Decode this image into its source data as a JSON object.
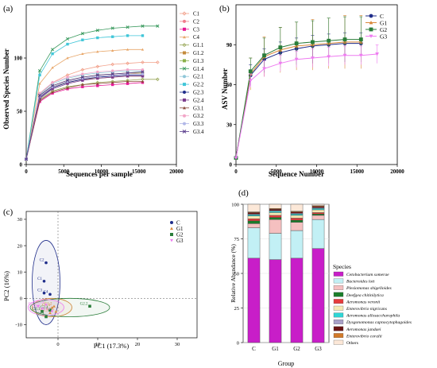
{
  "chart_data": [
    {
      "panel": "(a)",
      "type": "line",
      "xlabel": "Sequences per sample",
      "ylabel": "Observed Species Number",
      "xlim": [
        0,
        20000
      ],
      "ylim": [
        0,
        150
      ],
      "xticks": [
        0,
        5000,
        10000,
        15000,
        20000
      ],
      "yticks": [
        0,
        50,
        100
      ],
      "grid": false,
      "legend": "right",
      "x": [
        0,
        1800,
        3500,
        5500,
        7500,
        9500,
        11500,
        13500,
        15500,
        17500
      ],
      "series": [
        {
          "name": "C1",
          "color": "#f2a08a",
          "marker": "diamond",
          "values": [
            5,
            66,
            77,
            84,
            89,
            92,
            94,
            95,
            96,
            96
          ]
        },
        {
          "name": "C2",
          "color": "#f07c8c",
          "marker": "circle",
          "values": [
            5,
            63,
            73,
            78,
            81,
            83,
            84,
            85,
            86,
            null
          ]
        },
        {
          "name": "C3",
          "color": "#e61995",
          "marker": "square",
          "values": [
            5,
            59,
            67,
            71,
            73,
            74,
            75,
            76,
            77,
            null
          ]
        },
        {
          "name": "C4",
          "color": "#e8a76a",
          "marker": "triangle",
          "values": [
            5,
            76,
            91,
            100,
            104,
            106,
            107,
            108,
            108,
            null
          ]
        },
        {
          "name": "G1.1",
          "color": "#9aa85a",
          "marker": "diamond",
          "values": [
            5,
            61,
            69,
            73,
            75,
            77,
            78,
            79,
            80,
            80
          ]
        },
        {
          "name": "G1.2",
          "color": "#c48b3c",
          "marker": "square",
          "values": [
            5,
            64,
            73,
            77,
            80,
            81,
            82,
            83,
            83,
            null
          ]
        },
        {
          "name": "G1.3",
          "color": "#8bb04a",
          "marker": "square",
          "values": [
            5,
            65,
            74,
            79,
            82,
            84,
            85,
            86,
            86,
            null
          ]
        },
        {
          "name": "G1.4",
          "color": "#3a9a5e",
          "marker": "x",
          "values": [
            5,
            88,
            108,
            118,
            123,
            126,
            128,
            129,
            130,
            130
          ]
        },
        {
          "name": "G2.1",
          "color": "#8fc7d8",
          "marker": "circle",
          "values": [
            5,
            66,
            76,
            81,
            84,
            86,
            87,
            88,
            88,
            null
          ]
        },
        {
          "name": "G2.2",
          "color": "#41c6d8",
          "marker": "square",
          "values": [
            5,
            84,
            104,
            113,
            117,
            119,
            120,
            121,
            121,
            null
          ]
        },
        {
          "name": "G2.3",
          "color": "#1f2d8a",
          "marker": "circle",
          "values": [
            5,
            63,
            72,
            77,
            80,
            82,
            83,
            84,
            84,
            null
          ]
        },
        {
          "name": "G2.4",
          "color": "#7a3b8c",
          "marker": "square",
          "values": [
            5,
            62,
            71,
            76,
            79,
            81,
            82,
            83,
            83,
            null
          ]
        },
        {
          "name": "G3.1",
          "color": "#8a4a3a",
          "marker": "triangle",
          "values": [
            5,
            60,
            68,
            72,
            75,
            76,
            77,
            78,
            78,
            null
          ]
        },
        {
          "name": "G3.2",
          "color": "#f2a6c8",
          "marker": "circle",
          "values": [
            5,
            67,
            77,
            82,
            85,
            87,
            88,
            89,
            89,
            null
          ]
        },
        {
          "name": "G3.3",
          "color": "#b2b8e8",
          "marker": "circle",
          "values": [
            5,
            64,
            73,
            78,
            81,
            83,
            84,
            85,
            85,
            null
          ]
        },
        {
          "name": "G3.4",
          "color": "#5a3c8c",
          "marker": "x",
          "values": [
            5,
            65,
            74,
            79,
            82,
            84,
            85,
            86,
            87,
            null
          ]
        }
      ]
    },
    {
      "panel": "(b)",
      "type": "line",
      "xlabel": "Sequence Number",
      "ylabel": "ASV Number",
      "xlim": [
        0,
        20000
      ],
      "ylim": [
        0,
        120
      ],
      "xticks": [
        0,
        5000,
        10000,
        15000,
        20000
      ],
      "yticks": [
        0,
        30,
        60,
        90
      ],
      "grid": false,
      "legend": "top-right",
      "x": [
        0,
        1800,
        3500,
        5500,
        7500,
        9500,
        11500,
        13500,
        15500,
        17500
      ],
      "series": [
        {
          "name": "C",
          "color": "#1f2d8a",
          "marker": "circle",
          "values": [
            5,
            67,
            79,
            84,
            87,
            89,
            90,
            91,
            91,
            null
          ],
          "errors": [
            0,
            8,
            8,
            8,
            8,
            8,
            8,
            8,
            8,
            null
          ]
        },
        {
          "name": "G1",
          "color": "#d9883a",
          "marker": "triangle",
          "values": [
            5,
            68,
            81,
            86,
            89,
            90,
            91,
            92,
            92,
            null
          ],
          "errors": [
            0,
            12,
            15,
            17,
            18,
            19,
            19,
            20,
            20,
            null
          ]
        },
        {
          "name": "G2",
          "color": "#2a7d3a",
          "marker": "square",
          "values": [
            5,
            70,
            82,
            88,
            91,
            92,
            93,
            94,
            94,
            null
          ],
          "errors": [
            0,
            10,
            13,
            15,
            16,
            16,
            17,
            17,
            17,
            null
          ]
        },
        {
          "name": "G3",
          "color": "#ee7bf0",
          "marker": "triangle-down",
          "values": [
            5,
            63,
            72,
            76,
            79,
            80,
            81,
            82,
            82,
            83
          ],
          "errors": [
            0,
            5,
            6,
            6,
            6,
            7,
            7,
            7,
            7,
            7
          ]
        }
      ]
    },
    {
      "panel": "(c)",
      "type": "scatter",
      "xlabel": "PC1 (17.3%)",
      "ylabel": "PC2 (16%)",
      "xlim": [
        -8,
        35
      ],
      "ylim": [
        -15,
        33
      ],
      "xticks": [
        0,
        10,
        20,
        30
      ],
      "yticks": [
        -10,
        0,
        10,
        20,
        30
      ],
      "legend": "top-right",
      "groups": [
        {
          "name": "C",
          "color": "#1f2d8a",
          "marker": "circle",
          "ellipse": {
            "cx": -3,
            "cy": 6,
            "rx": 3.5,
            "ry": 16
          }
        },
        {
          "name": "G1",
          "color": "#d9883a",
          "marker": "triangle",
          "ellipse": {
            "cx": -1.5,
            "cy": -3.5,
            "rx": 5,
            "ry": 3.5
          }
        },
        {
          "name": "G2",
          "color": "#2a7d3a",
          "marker": "square",
          "ellipse": {
            "cx": 3,
            "cy": -3.5,
            "rx": 10,
            "ry": 3.5
          }
        },
        {
          "name": "G3",
          "color": "#ee7bf0",
          "marker": "triangle-down",
          "ellipse": {
            "cx": -3,
            "cy": -3.5,
            "rx": 4.5,
            "ry": 3
          }
        }
      ],
      "points": [
        {
          "label": "C1",
          "group": "C",
          "x": -3.5,
          "y": 6.5
        },
        {
          "label": "C2",
          "group": "C",
          "x": -3,
          "y": 13.5
        },
        {
          "label": "C3",
          "group": "C",
          "x": -3.5,
          "y": 2
        },
        {
          "label": "C4",
          "group": "C",
          "x": -2,
          "y": 1.5
        },
        {
          "label": "G1.1",
          "group": "G1",
          "x": -0.5,
          "y": -5
        },
        {
          "label": "G1.2",
          "group": "G1",
          "x": -1,
          "y": -3
        },
        {
          "label": "G1.3",
          "group": "G1",
          "x": -2,
          "y": -5.5
        },
        {
          "label": "G1.4",
          "group": "G1",
          "x": -1.5,
          "y": -3.5
        },
        {
          "label": "G2.1",
          "group": "G2",
          "x": -4,
          "y": -5
        },
        {
          "label": "G2.2",
          "group": "G2",
          "x": 8,
          "y": -3
        },
        {
          "label": "G2.3",
          "group": "G2",
          "x": -3,
          "y": -7
        },
        {
          "label": "G2.4",
          "group": "G2",
          "x": -2,
          "y": -4.5
        },
        {
          "label": "G3.1",
          "group": "G3",
          "x": -5,
          "y": -3
        },
        {
          "label": "G3.2",
          "group": "G3",
          "x": -4,
          "y": -4
        },
        {
          "label": "G3.3",
          "group": "G3",
          "x": -1.5,
          "y": -5
        },
        {
          "label": "G3.4",
          "group": "G3",
          "x": -3,
          "y": -2.5
        }
      ]
    },
    {
      "panel": "(d)",
      "type": "bar",
      "stacked": true,
      "xlabel": "Group",
      "ylabel": "Relative Abundance (%)",
      "ylim": [
        0,
        100
      ],
      "yticks": [
        0,
        25,
        50,
        75,
        100
      ],
      "categories": [
        "C",
        "G1",
        "G2",
        "G3"
      ],
      "legend": "right",
      "legend_title": "Species",
      "series": [
        {
          "name": "Cetobacterium somerae",
          "color": "#c81ec8",
          "values": [
            61,
            60,
            61,
            68
          ]
        },
        {
          "name": "Bacteroides lott",
          "color": "#c2f0f5",
          "values": [
            22,
            19,
            20,
            21
          ]
        },
        {
          "name": "Plesiomonas shigelloides",
          "color": "#f5c0c0",
          "values": [
            3,
            10,
            6,
            3
          ]
        },
        {
          "name": "Deefgea chitinilytica",
          "color": "#1a7d2a",
          "values": [
            2,
            1.5,
            1.5,
            1
          ]
        },
        {
          "name": "Aeromonas veronii",
          "color": "#e63c3c",
          "values": [
            1.5,
            1.5,
            1.5,
            1
          ]
        },
        {
          "name": "Enterovibrio nigricans",
          "color": "#f5e9b4",
          "values": [
            2,
            2,
            2,
            2
          ]
        },
        {
          "name": "Aeromonas allosaccharophila",
          "color": "#2fd6d6",
          "values": [
            1,
            1,
            1,
            1
          ]
        },
        {
          "name": "Dysgonomonas capnocytophagoides",
          "color": "#a8a0c8",
          "values": [
            0.5,
            0.5,
            0.5,
            0.5
          ]
        },
        {
          "name": "Aeromonas jandaei",
          "color": "#6a1414",
          "values": [
            1,
            1,
            1,
            1
          ]
        },
        {
          "name": "Enterovibrio coralii",
          "color": "#d27a2a",
          "values": [
            0.5,
            0.5,
            0.5,
            0.5
          ]
        },
        {
          "name": "Others",
          "color": "#fce8d8",
          "values": [
            5.5,
            3,
            5,
            1
          ]
        }
      ]
    }
  ]
}
